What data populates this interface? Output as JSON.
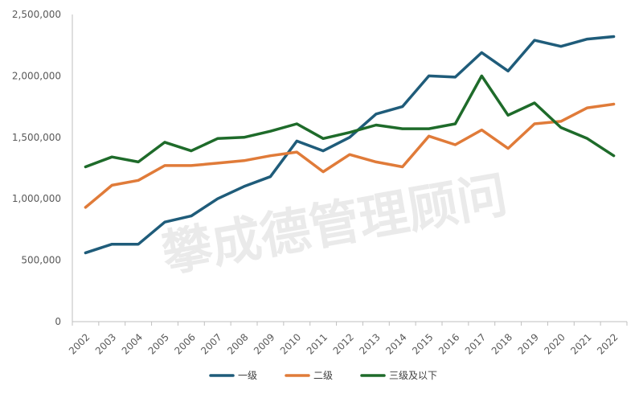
{
  "chart_data": {
    "type": "line",
    "title": "",
    "xlabel": "",
    "ylabel": "",
    "ylim": [
      0,
      2500000
    ],
    "yticks": [
      0,
      500000,
      1000000,
      1500000,
      2000000,
      2500000
    ],
    "ytick_labels": [
      "0",
      "500,000",
      "1,000,000",
      "1,500,000",
      "2,000,000",
      "2,500,000"
    ],
    "categories": [
      "2002",
      "2003",
      "2004",
      "2005",
      "2006",
      "2007",
      "2008",
      "2009",
      "2010",
      "2011",
      "2012",
      "2013",
      "2014",
      "2015",
      "2016",
      "2017",
      "2018",
      "2019",
      "2020",
      "2021",
      "2022"
    ],
    "grid": false,
    "legend_position": "bottom",
    "series": [
      {
        "name": "一级",
        "color": "#1f5c7a",
        "values": [
          560000,
          630000,
          630000,
          810000,
          860000,
          1000000,
          1100000,
          1180000,
          1470000,
          1390000,
          1500000,
          1690000,
          1750000,
          2000000,
          1990000,
          2190000,
          2040000,
          2290000,
          2240000,
          2300000,
          2320000
        ]
      },
      {
        "name": "二级",
        "color": "#e07b39",
        "values": [
          930000,
          1110000,
          1150000,
          1270000,
          1270000,
          1290000,
          1310000,
          1350000,
          1380000,
          1220000,
          1360000,
          1300000,
          1260000,
          1510000,
          1440000,
          1560000,
          1410000,
          1610000,
          1630000,
          1740000,
          1770000
        ]
      },
      {
        "name": "三级及以下",
        "color": "#1e6b2a",
        "values": [
          1260000,
          1340000,
          1300000,
          1460000,
          1390000,
          1490000,
          1500000,
          1550000,
          1610000,
          1490000,
          1540000,
          1600000,
          1570000,
          1570000,
          1610000,
          2000000,
          1680000,
          1780000,
          1580000,
          1490000,
          1350000
        ]
      }
    ]
  },
  "watermark": "攀成德管理顾问"
}
